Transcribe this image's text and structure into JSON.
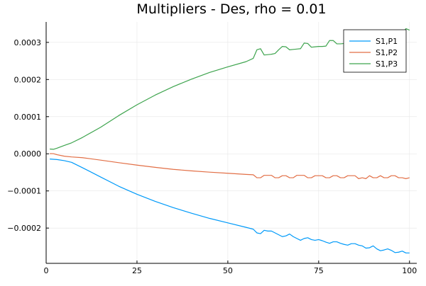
{
  "chart_data": {
    "type": "line",
    "title": "Multipliers - Des, rho = 0.01",
    "xlabel": "",
    "ylabel": "",
    "xlim": [
      0,
      102
    ],
    "ylim": [
      -0.000295,
      0.000355
    ],
    "xticks": [
      0,
      25,
      50,
      75,
      100
    ],
    "xtick_labels": [
      "0",
      "25",
      "50",
      "75",
      "100"
    ],
    "yticks": [
      -0.0002,
      -0.0001,
      0.0,
      0.0001,
      0.0002,
      0.0003
    ],
    "ytick_labels": [
      "−0.0002",
      "−0.0001",
      "0.0000",
      "0.0001",
      "0.0002",
      "0.0003"
    ],
    "grid": true,
    "legend_position": "top-right",
    "series": [
      {
        "name": "S1,P1",
        "color": "#009af9",
        "x": [
          1,
          3,
          5,
          7,
          10,
          15,
          20,
          25,
          30,
          35,
          40,
          45,
          50,
          55,
          57,
          58,
          59,
          60,
          61,
          62,
          63,
          64,
          65,
          66,
          67,
          68,
          69,
          70,
          71,
          72,
          73,
          74,
          75,
          76,
          77,
          78,
          79,
          80,
          81,
          82,
          83,
          84,
          85,
          86,
          87,
          88,
          89,
          90,
          91,
          92,
          93,
          94,
          95,
          96,
          97,
          98,
          99,
          100
        ],
        "y": [
          -1.41e-05,
          -1.55e-05,
          -1.85e-05,
          -2.3e-05,
          -3.75e-05,
          -6.25e-05,
          -8.75e-05,
          -0.000109,
          -0.000128,
          -0.000145,
          -0.00016,
          -0.000174,
          -0.000186,
          -0.000198,
          -0.000203,
          -0.000213,
          -0.000215,
          -0.000206,
          -0.000208,
          -0.000208,
          -0.000213,
          -0.000218,
          -0.000223,
          -0.000221,
          -0.000216,
          -0.000223,
          -0.000228,
          -0.000233,
          -0.000228,
          -0.000226,
          -0.000231,
          -0.000233,
          -0.000231,
          -0.000234,
          -0.000238,
          -0.000241,
          -0.000237,
          -0.000237,
          -0.000241,
          -0.000244,
          -0.000246,
          -0.000242,
          -0.000242,
          -0.000246,
          -0.000248,
          -0.000254,
          -0.000253,
          -0.000248,
          -0.000256,
          -0.000261,
          -0.000259,
          -0.000256,
          -0.00026,
          -0.000266,
          -0.000265,
          -0.000262,
          -0.000267,
          -0.000267
        ]
      },
      {
        "name": "S1,P2",
        "color": "#e26f46",
        "x": [
          1,
          2,
          3,
          5,
          7,
          10,
          15,
          20,
          25,
          30,
          35,
          40,
          45,
          50,
          55,
          57,
          58,
          59,
          60,
          61,
          62,
          63,
          64,
          65,
          66,
          67,
          68,
          69,
          70,
          71,
          72,
          73,
          74,
          75,
          76,
          77,
          78,
          79,
          80,
          81,
          82,
          83,
          84,
          85,
          86,
          87,
          88,
          89,
          90,
          91,
          92,
          93,
          94,
          95,
          96,
          97,
          98,
          99,
          100
        ],
        "y": [
          5e-07,
          3e-07,
          -2.5e-06,
          -6.5e-06,
          -8.5e-06,
          -1.05e-05,
          -1.7e-05,
          -2.4e-05,
          -3.05e-05,
          -3.65e-05,
          -4.2e-05,
          -4.6e-05,
          -4.95e-05,
          -5.25e-05,
          -5.55e-05,
          -5.65e-05,
          -6.45e-05,
          -6.45e-05,
          -5.8e-05,
          -5.8e-05,
          -5.8e-05,
          -6.45e-05,
          -6.45e-05,
          -5.9e-05,
          -5.9e-05,
          -6.45e-05,
          -6.45e-05,
          -5.8e-05,
          -5.8e-05,
          -5.8e-05,
          -6.45e-05,
          -6.45e-05,
          -5.9e-05,
          -5.9e-05,
          -5.9e-05,
          -6.45e-05,
          -6.45e-05,
          -5.9e-05,
          -5.9e-05,
          -6.45e-05,
          -6.45e-05,
          -5.9e-05,
          -5.9e-05,
          -5.9e-05,
          -6.7e-05,
          -6.45e-05,
          -6.7e-05,
          -5.9e-05,
          -6.45e-05,
          -6.45e-05,
          -5.9e-05,
          -6.45e-05,
          -6.45e-05,
          -5.9e-05,
          -5.9e-05,
          -6.45e-05,
          -6.45e-05,
          -6.7e-05,
          -6.45e-05
        ]
      },
      {
        "name": "S1,P3",
        "color": "#3ea44e",
        "x": [
          1,
          2,
          3,
          5,
          7,
          10,
          15,
          20,
          25,
          30,
          35,
          40,
          45,
          50,
          55,
          57,
          58,
          59,
          60,
          61,
          62,
          63,
          64,
          65,
          66,
          67,
          68,
          69,
          70,
          71,
          72,
          73,
          74,
          75,
          76,
          77,
          78,
          79,
          80,
          81,
          82,
          83,
          84,
          85,
          86,
          87,
          88,
          89,
          90,
          91,
          92,
          93,
          94,
          95,
          96,
          97,
          98,
          99,
          100
        ],
        "y": [
          1.28e-05,
          1.21e-05,
          1.51e-05,
          2.25e-05,
          2.95e-05,
          4.4e-05,
          7.15e-05,
          0.000103,
          0.000132,
          0.000158,
          0.000181,
          0.000201,
          0.000219,
          0.000234,
          0.000248,
          0.000257,
          0.00028,
          0.000283,
          0.000266,
          0.000267,
          0.000268,
          0.00027,
          0.00028,
          0.000289,
          0.000288,
          0.00028,
          0.000281,
          0.000282,
          0.000283,
          0.000298,
          0.000297,
          0.000287,
          0.000288,
          0.000289,
          0.000289,
          0.00029,
          0.000305,
          0.000305,
          0.000296,
          0.000296,
          0.000297,
          0.000298,
          0.000309,
          0.000315,
          0.000315,
          0.000316,
          0.000317,
          0.000318,
          0.000316,
          0.000317,
          0.000318,
          0.000319,
          0.00032,
          0.000321,
          0.000322,
          0.000323,
          0.000324,
          0.000337,
          0.000333
        ]
      }
    ]
  }
}
